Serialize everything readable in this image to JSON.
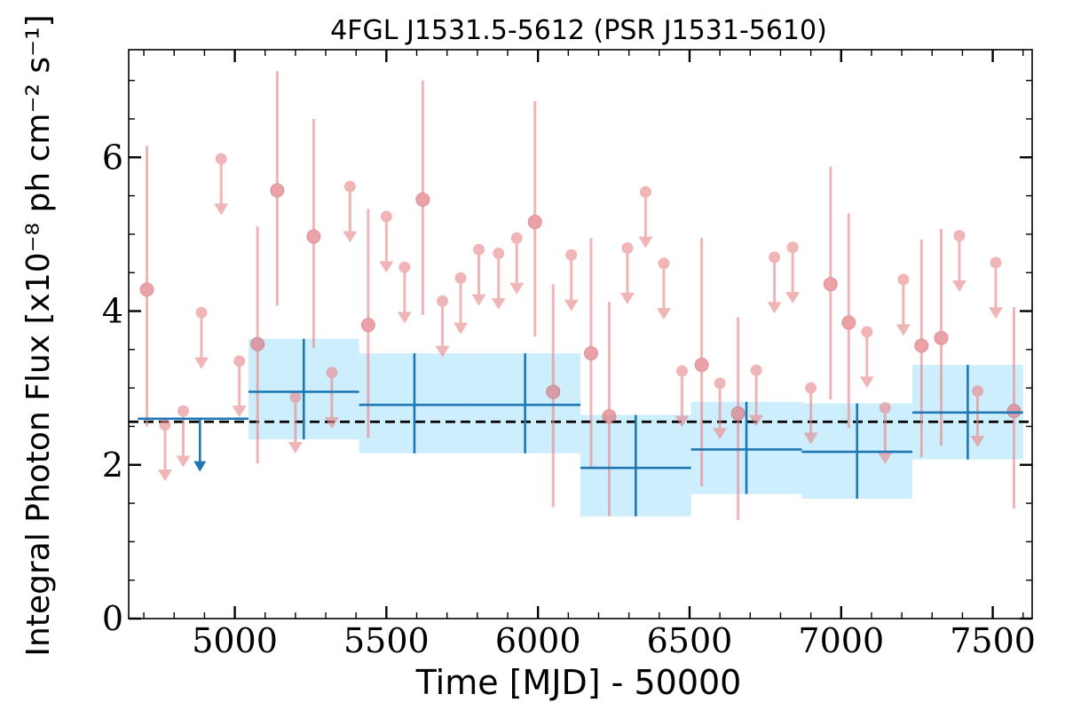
{
  "chart_data": {
    "type": "scatter",
    "title": "4FGL J1531.5-5612 (PSR J1531-5610)",
    "xlabel": "Time [MJD] - 50000",
    "ylabel": "Integral Photon Flux [x10⁻⁸ ph cm⁻² s⁻¹]",
    "xlim": [
      4650,
      7630
    ],
    "ylim": [
      0,
      7.4
    ],
    "xticks": [
      5000,
      5500,
      6000,
      6500,
      7000,
      7500
    ],
    "xtick_labels": [
      "5000",
      "5500",
      "6000",
      "6500",
      "7000",
      "7500"
    ],
    "yticks": [
      0,
      2,
      4,
      6
    ],
    "ytick_labels": [
      "0",
      "2",
      "4",
      "6"
    ],
    "average_flux": 2.56,
    "colors": {
      "short_bins": "#e8888c",
      "long_bins": "#1f77b4",
      "long_band": "#cdeefc",
      "average_line": "#000000"
    },
    "short_bins": [
      {
        "x": 4710,
        "y": 4.28,
        "lo": 2.5,
        "hi": 6.15
      },
      {
        "x": 4770,
        "y": 2.52,
        "ul": true
      },
      {
        "x": 4830,
        "y": 2.7,
        "ul": true
      },
      {
        "x": 4890,
        "y": 3.98,
        "ul": true
      },
      {
        "x": 4955,
        "y": 5.98,
        "ul": true
      },
      {
        "x": 5015,
        "y": 3.35,
        "ul": true
      },
      {
        "x": 5075,
        "y": 3.57,
        "lo": 2.02,
        "hi": 5.1
      },
      {
        "x": 5140,
        "y": 5.57,
        "lo": 4.07,
        "hi": 7.12
      },
      {
        "x": 5200,
        "y": 2.88,
        "ul": true
      },
      {
        "x": 5260,
        "y": 4.97,
        "lo": 3.52,
        "hi": 6.5
      },
      {
        "x": 5320,
        "y": 3.2,
        "ul": true
      },
      {
        "x": 5380,
        "y": 5.62,
        "ul": true
      },
      {
        "x": 5440,
        "y": 3.82,
        "lo": 2.35,
        "hi": 5.33
      },
      {
        "x": 5500,
        "y": 5.23,
        "ul": true
      },
      {
        "x": 5560,
        "y": 4.57,
        "ul": true
      },
      {
        "x": 5620,
        "y": 5.45,
        "lo": 3.95,
        "hi": 7.0
      },
      {
        "x": 5685,
        "y": 4.13,
        "ul": true
      },
      {
        "x": 5745,
        "y": 4.43,
        "ul": true
      },
      {
        "x": 5805,
        "y": 4.8,
        "ul": true
      },
      {
        "x": 5870,
        "y": 4.75,
        "ul": true
      },
      {
        "x": 5930,
        "y": 4.95,
        "ul": true
      },
      {
        "x": 5990,
        "y": 5.16,
        "lo": 3.67,
        "hi": 6.73
      },
      {
        "x": 6050,
        "y": 2.95,
        "lo": 1.45,
        "hi": 4.35
      },
      {
        "x": 6110,
        "y": 4.73,
        "ul": true
      },
      {
        "x": 6175,
        "y": 3.45,
        "lo": 1.95,
        "hi": 4.95
      },
      {
        "x": 6235,
        "y": 2.63,
        "lo": 1.33,
        "hi": 4.12
      },
      {
        "x": 6295,
        "y": 4.82,
        "ul": true
      },
      {
        "x": 6355,
        "y": 5.55,
        "ul": true
      },
      {
        "x": 6415,
        "y": 4.62,
        "ul": true
      },
      {
        "x": 6475,
        "y": 3.22,
        "ul": true
      },
      {
        "x": 6540,
        "y": 3.3,
        "lo": 1.72,
        "hi": 4.95
      },
      {
        "x": 6600,
        "y": 3.06,
        "ul": true
      },
      {
        "x": 6660,
        "y": 2.67,
        "lo": 1.28,
        "hi": 3.92
      },
      {
        "x": 6720,
        "y": 3.23,
        "ul": true
      },
      {
        "x": 6780,
        "y": 4.7,
        "ul": true
      },
      {
        "x": 6840,
        "y": 4.83,
        "ul": true
      },
      {
        "x": 6900,
        "y": 3.0,
        "ul": true
      },
      {
        "x": 6965,
        "y": 4.35,
        "lo": 2.85,
        "hi": 5.88
      },
      {
        "x": 7025,
        "y": 3.85,
        "lo": 2.48,
        "hi": 5.27
      },
      {
        "x": 7085,
        "y": 3.73,
        "ul": true
      },
      {
        "x": 7145,
        "y": 2.74,
        "ul": true
      },
      {
        "x": 7205,
        "y": 4.41,
        "ul": true
      },
      {
        "x": 7265,
        "y": 3.55,
        "lo": 2.1,
        "hi": 4.93
      },
      {
        "x": 7330,
        "y": 3.65,
        "lo": 2.25,
        "hi": 5.07
      },
      {
        "x": 7390,
        "y": 4.98,
        "ul": true
      },
      {
        "x": 7450,
        "y": 2.96,
        "ul": true
      },
      {
        "x": 7510,
        "y": 4.63,
        "ul": true
      },
      {
        "x": 7570,
        "y": 2.7,
        "lo": 1.43,
        "hi": 4.05
      }
    ],
    "long_bins": [
      {
        "x0": 4680,
        "x1": 5045,
        "y": 2.6,
        "ul": true,
        "ul_x": 4885
      },
      {
        "x0": 5045,
        "x1": 5410,
        "y": 2.95,
        "lo": 2.33,
        "hi": 3.64
      },
      {
        "x0": 5410,
        "x1": 5775,
        "y": 2.78,
        "lo": 2.15,
        "hi": 3.45
      },
      {
        "x0": 5775,
        "x1": 6140,
        "y": 2.78,
        "lo": 2.15,
        "hi": 3.45
      },
      {
        "x0": 6140,
        "x1": 6505,
        "y": 1.96,
        "lo": 1.33,
        "hi": 2.65
      },
      {
        "x0": 6505,
        "x1": 6870,
        "y": 2.2,
        "lo": 1.62,
        "hi": 2.82
      },
      {
        "x0": 6870,
        "x1": 7235,
        "y": 2.17,
        "lo": 1.56,
        "hi": 2.8
      },
      {
        "x0": 7235,
        "x1": 7600,
        "y": 2.68,
        "lo": 2.07,
        "hi": 3.3
      }
    ]
  }
}
